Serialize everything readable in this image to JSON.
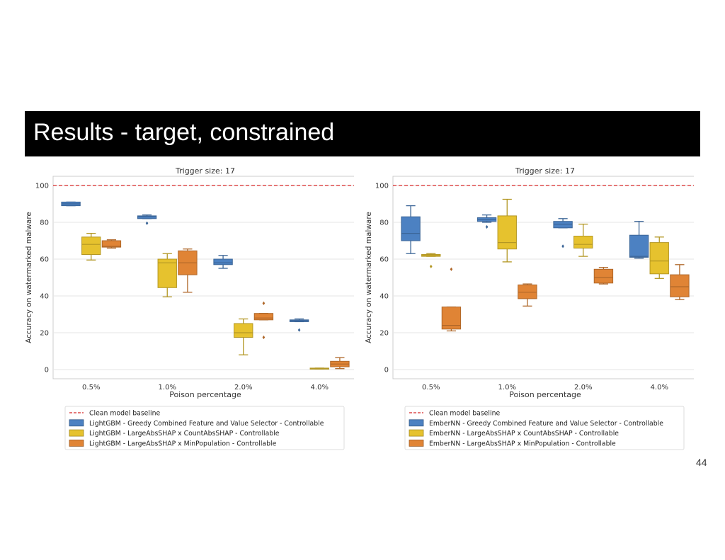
{
  "slide": {
    "title": "Results - target, constrained",
    "page_number": "44"
  },
  "chart_data": [
    {
      "type": "box",
      "title": "Trigger size: 17",
      "xlabel": "Poison percentage",
      "ylabel": "Accuracy on watermarked malware",
      "categories": [
        "0.5%",
        "1.0%",
        "2.0%",
        "4.0%"
      ],
      "ylim": [
        -5,
        105
      ],
      "yticks": [
        0,
        20,
        40,
        60,
        80,
        100
      ],
      "grid": true,
      "legend_position": "below",
      "baseline": {
        "name": "Clean model baseline",
        "value": 100,
        "color": "#d62728"
      },
      "series": [
        {
          "name": "LightGBM - Greedy Combined Feature and Value Selector - Controllable",
          "color": "#4c81c2",
          "boxes": [
            {
              "whislo": 89,
              "q1": 89,
              "med": 90,
              "q3": 91,
              "whishi": 91,
              "fliers": []
            },
            {
              "whislo": 82,
              "q1": 82,
              "med": 83,
              "q3": 83.5,
              "whishi": 84,
              "fliers": [
                79.5
              ]
            },
            {
              "whislo": 55,
              "q1": 57,
              "med": 58,
              "q3": 60,
              "whishi": 62,
              "fliers": []
            },
            {
              "whislo": 26,
              "q1": 26,
              "med": 26.5,
              "q3": 27,
              "whishi": 27.5,
              "fliers": [
                21.5
              ]
            }
          ]
        },
        {
          "name": "LightGBM - LargeAbsSHAP x CountAbsSHAP - Controllable",
          "color": "#e6c22e",
          "boxes": [
            {
              "whislo": 59.5,
              "q1": 62.5,
              "med": 68,
              "q3": 72,
              "whishi": 74,
              "fliers": []
            },
            {
              "whislo": 39.5,
              "q1": 44.5,
              "med": 58,
              "q3": 60,
              "whishi": 63,
              "fliers": []
            },
            {
              "whislo": 8,
              "q1": 17.5,
              "med": 20,
              "q3": 25,
              "whishi": 27.5,
              "fliers": []
            },
            {
              "whislo": 0.3,
              "q1": 0.3,
              "med": 0.5,
              "q3": 0.8,
              "whishi": 0.8,
              "fliers": []
            }
          ]
        },
        {
          "name": "LightGBM - LargeAbsSHAP x MinPopulation - Controllable",
          "color": "#e08435",
          "boxes": [
            {
              "whislo": 66,
              "q1": 66.5,
              "med": 67,
              "q3": 70,
              "whishi": 70.5,
              "fliers": []
            },
            {
              "whislo": 42,
              "q1": 51.5,
              "med": 58,
              "q3": 64.5,
              "whishi": 65.5,
              "fliers": []
            },
            {
              "whislo": 27,
              "q1": 27,
              "med": 28,
              "q3": 30.5,
              "whishi": 30.5,
              "fliers": [
                36,
                17.5
              ]
            },
            {
              "whislo": 0.5,
              "q1": 1.5,
              "med": 3,
              "q3": 4.5,
              "whishi": 6.5,
              "fliers": []
            }
          ]
        }
      ]
    },
    {
      "type": "box",
      "title": "Trigger size: 17",
      "xlabel": "Poison percentage",
      "ylabel": "Accuracy on watermarked malware",
      "categories": [
        "0.5%",
        "1.0%",
        "2.0%",
        "4.0%"
      ],
      "ylim": [
        -5,
        105
      ],
      "yticks": [
        0,
        20,
        40,
        60,
        80,
        100
      ],
      "grid": true,
      "legend_position": "below",
      "baseline": {
        "name": "Clean model baseline",
        "value": 100,
        "color": "#d62728"
      },
      "series": [
        {
          "name": "EmberNN - Greedy Combined Feature and Value Selector - Controllable",
          "color": "#4c81c2",
          "boxes": [
            {
              "whislo": 63,
              "q1": 70,
              "med": 74,
              "q3": 83,
              "whishi": 89,
              "fliers": []
            },
            {
              "whislo": 80,
              "q1": 80.5,
              "med": 81.5,
              "q3": 82.5,
              "whishi": 84,
              "fliers": [
                77.5
              ]
            },
            {
              "whislo": 77,
              "q1": 77,
              "med": 79,
              "q3": 80.5,
              "whishi": 82,
              "fliers": [
                67
              ]
            },
            {
              "whislo": 60.5,
              "q1": 61,
              "med": 61.5,
              "q3": 73,
              "whishi": 80.5,
              "fliers": []
            }
          ]
        },
        {
          "name": "EmberNN - LargeAbsSHAP x CountAbsSHAP - Controllable",
          "color": "#e6c22e",
          "boxes": [
            {
              "whislo": 61.5,
              "q1": 61.5,
              "med": 62,
              "q3": 62.5,
              "whishi": 63,
              "fliers": [
                56
              ]
            },
            {
              "whislo": 58.5,
              "q1": 65.5,
              "med": 69,
              "q3": 83.5,
              "whishi": 92.5,
              "fliers": []
            },
            {
              "whislo": 61.5,
              "q1": 66,
              "med": 68,
              "q3": 72.5,
              "whishi": 79,
              "fliers": []
            },
            {
              "whislo": 49.5,
              "q1": 52,
              "med": 59,
              "q3": 69,
              "whishi": 72,
              "fliers": []
            }
          ]
        },
        {
          "name": "EmberNN - LargeAbsSHAP x MinPopulation - Controllable",
          "color": "#e08435",
          "boxes": [
            {
              "whislo": 21,
              "q1": 22,
              "med": 24,
              "q3": 34,
              "whishi": 34,
              "fliers": [
                54.5
              ]
            },
            {
              "whislo": 34.5,
              "q1": 38.5,
              "med": 42,
              "q3": 46,
              "whishi": 46.5,
              "fliers": []
            },
            {
              "whislo": 46.5,
              "q1": 47,
              "med": 50,
              "q3": 54.5,
              "whishi": 55.5,
              "fliers": []
            },
            {
              "whislo": 38,
              "q1": 39.5,
              "med": 45,
              "q3": 51.5,
              "whishi": 57,
              "fliers": []
            }
          ]
        }
      ]
    }
  ]
}
